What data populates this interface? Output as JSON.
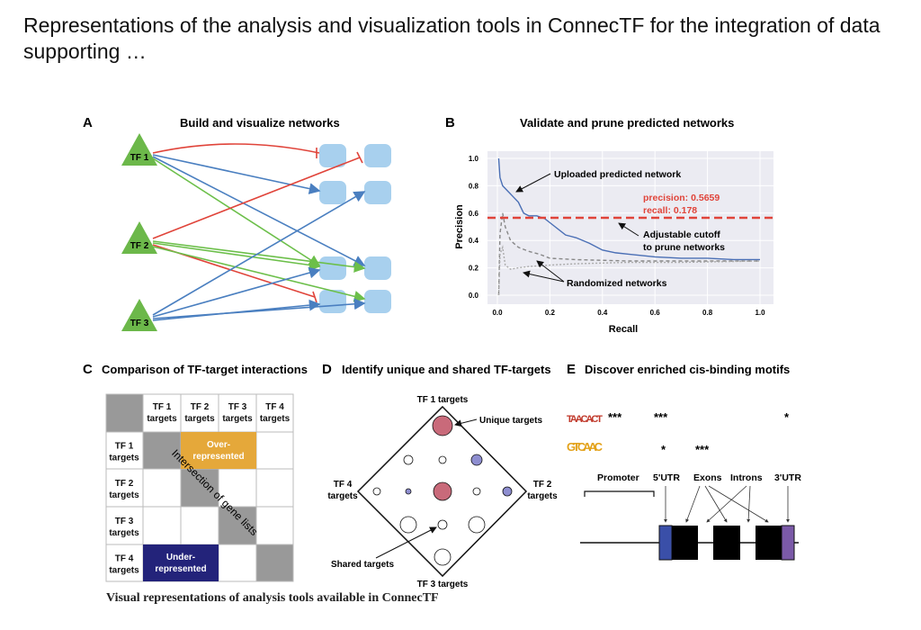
{
  "title": "Representations of the analysis and visualization tools in ConnecTF for the integration of data supporting …",
  "caption": "Visual representations of analysis tools available in ConnecTF",
  "panel_a": {
    "letter": "A",
    "title": "Build and visualize networks",
    "tfs": [
      "TF 1",
      "TF 2",
      "TF 3"
    ]
  },
  "panel_b": {
    "letter": "B",
    "title": "Validate and prune predicted networks",
    "annot_uploaded": "Uploaded predicted network",
    "annot_precision": "precision: 0.5659",
    "annot_recall": "recall: 0.178",
    "annot_cutoff_1": "Adjustable cutoff",
    "annot_cutoff_2": "to prune networks",
    "annot_random": "Randomized networks"
  },
  "chart_data": {
    "type": "line",
    "xlabel": "Recall",
    "ylabel": "Precision",
    "xlim": [
      0,
      1
    ],
    "ylim": [
      0,
      1
    ],
    "xticks": [
      "0.0",
      "0.2",
      "0.4",
      "0.6",
      "0.8",
      "1.0"
    ],
    "yticks": [
      "0.0",
      "0.2",
      "0.4",
      "0.6",
      "0.8",
      "1.0"
    ],
    "cutoff": 0.5659,
    "series": [
      {
        "name": "Uploaded predicted network",
        "color": "#4a6fb5",
        "x": [
          0.005,
          0.01,
          0.02,
          0.04,
          0.06,
          0.08,
          0.1,
          0.12,
          0.15,
          0.18,
          0.22,
          0.26,
          0.3,
          0.35,
          0.4,
          0.45,
          0.5,
          0.6,
          0.7,
          0.8,
          0.9,
          1.0
        ],
        "y": [
          1.0,
          0.86,
          0.8,
          0.76,
          0.72,
          0.68,
          0.6,
          0.58,
          0.58,
          0.56,
          0.5,
          0.44,
          0.42,
          0.38,
          0.33,
          0.31,
          0.3,
          0.28,
          0.27,
          0.27,
          0.26,
          0.26
        ]
      },
      {
        "name": "Randomized network 1",
        "color": "#888888",
        "x": [
          0.005,
          0.01,
          0.02,
          0.03,
          0.05,
          0.08,
          0.12,
          0.16,
          0.2,
          0.3,
          0.5,
          0.7,
          1.0
        ],
        "y": [
          0.0,
          0.45,
          0.6,
          0.5,
          0.4,
          0.35,
          0.32,
          0.3,
          0.27,
          0.26,
          0.25,
          0.25,
          0.25
        ]
      },
      {
        "name": "Randomized network 2",
        "color": "#aaaaaa",
        "x": [
          0.005,
          0.01,
          0.02,
          0.03,
          0.05,
          0.08,
          0.12,
          0.2,
          0.3,
          0.5,
          0.7,
          1.0
        ],
        "y": [
          0.0,
          0.3,
          0.35,
          0.22,
          0.19,
          0.2,
          0.21,
          0.22,
          0.23,
          0.24,
          0.24,
          0.25
        ]
      }
    ]
  },
  "panel_c": {
    "letter": "C",
    "title": "Comparison of TF-target interactions",
    "cols": [
      "TF 1",
      "TF 2",
      "TF 3",
      "TF 4"
    ],
    "sub": "targets",
    "over_1": "Over-",
    "over_2": "represented",
    "under_1": "Under-",
    "under_2": "represented",
    "diag": "Intersection of gene lists",
    "over_color": "#e5a83a",
    "under_color": "#23237a"
  },
  "panel_d": {
    "letter": "D",
    "title": "Identify unique and shared TF-targets",
    "top": "TF 1 targets",
    "bottom": "TF 3 targets",
    "left_1": "TF 4",
    "right_1": "TF 2",
    "sub": "targets",
    "unique": "Unique targets",
    "shared": "Shared targets"
  },
  "panel_e": {
    "letter": "E",
    "title": "Discover enriched cis-binding motifs",
    "motif1": "TAACACT",
    "motif2": "GTCAAC",
    "stars1": [
      "***",
      "***",
      "*"
    ],
    "stars2": [
      "*",
      "***"
    ],
    "promoter": "Promoter",
    "utr5": "5'UTR",
    "exons": "Exons",
    "introns": "Introns",
    "utr3": "3'UTR"
  }
}
